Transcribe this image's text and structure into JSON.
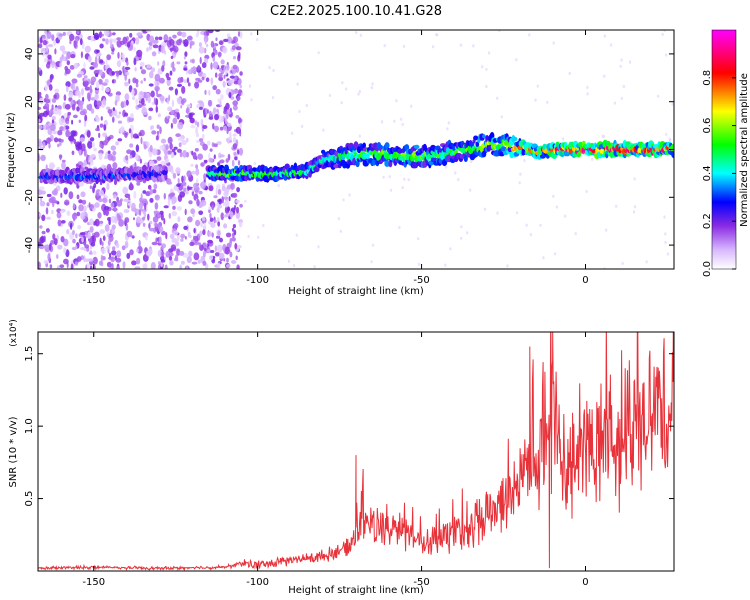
{
  "title": "C2E2.2025.100.10.41.G28",
  "colors": {
    "snr_line": "#e8323a",
    "colormap": [
      "#ffffff",
      "#c8a8ff",
      "#8a2be2",
      "#0000ff",
      "#00ffff",
      "#00ff00",
      "#ffff00",
      "#ff0000",
      "#ff00ff"
    ]
  },
  "chart_data": [
    {
      "type": "heatmap",
      "title": "C2E2.2025.100.10.41.G28",
      "xlabel": "Height of straight line (km)",
      "ylabel": "Frequency (Hz)",
      "xlim": [
        -167,
        27
      ],
      "ylim": [
        -50,
        50
      ],
      "x_ticks": [
        -150,
        -100,
        -50,
        0
      ],
      "y_ticks": [
        -40,
        -20,
        0,
        20,
        40
      ],
      "colorbar": {
        "label": "Normalized spectral amplitude",
        "range": [
          0.0,
          1.0
        ],
        "ticks": [
          0.0,
          0.2,
          0.4,
          0.6,
          0.8
        ]
      },
      "ridge": {
        "x": [
          -165,
          -150,
          -135,
          -125,
          -110,
          -95,
          -85,
          -80,
          -70,
          -60,
          -50,
          -40,
          -30,
          -25,
          -20,
          -15,
          -10,
          0,
          10,
          20,
          27
        ],
        "y": [
          -11,
          -11,
          -10,
          -10,
          -10,
          -10,
          -9,
          -4,
          -2,
          -2,
          -3,
          -1,
          2,
          2,
          1,
          -1,
          0,
          0,
          0,
          0,
          0
        ],
        "amplitude": [
          0.3,
          0.35,
          0.3,
          0.25,
          0.55,
          0.5,
          0.5,
          0.45,
          0.5,
          0.55,
          0.55,
          0.5,
          0.6,
          0.6,
          0.75,
          0.7,
          0.8,
          0.9,
          0.85,
          0.85,
          0.85
        ]
      },
      "noise_region_x": [
        -167,
        -105
      ]
    },
    {
      "type": "line",
      "xlabel": "Height of straight line (km)",
      "ylabel": "SNR (10 * v/v)",
      "y_scale_label": "(x10⁴)",
      "xlim": [
        -167,
        27
      ],
      "ylim": [
        0,
        1.65
      ],
      "x_ticks": [
        -150,
        -100,
        -50,
        0
      ],
      "y_ticks": [
        0.5,
        1.0,
        1.5
      ],
      "series": [
        {
          "values_envelope": {
            "x": [
              -167,
              -150,
              -130,
              -110,
              -105,
              -100,
              -90,
              -80,
              -72,
              -68,
              -65,
              -60,
              -55,
              -50,
              -45,
              -40,
              -35,
              -30,
              -25,
              -20,
              -17,
              -15,
              -12,
              -10,
              -8,
              -5,
              -2,
              0,
              5,
              10,
              15,
              20,
              25,
              27
            ],
            "y": [
              0.02,
              0.03,
              0.02,
              0.03,
              0.06,
              0.04,
              0.08,
              0.12,
              0.2,
              0.45,
              0.35,
              0.3,
              0.28,
              0.22,
              0.25,
              0.3,
              0.35,
              0.45,
              0.55,
              0.7,
              0.9,
              0.85,
              1.0,
              1.3,
              0.95,
              0.75,
              0.85,
              1.0,
              0.95,
              1.0,
              1.1,
              1.2,
              1.3,
              1.35
            ]
          },
          "peaks": [
            {
              "x": -70,
              "y": 0.8
            },
            {
              "x": -17,
              "y": 1.55
            },
            {
              "x": -10,
              "y": 1.65
            },
            {
              "x": -11,
              "y": 0.02
            }
          ]
        }
      ]
    }
  ]
}
